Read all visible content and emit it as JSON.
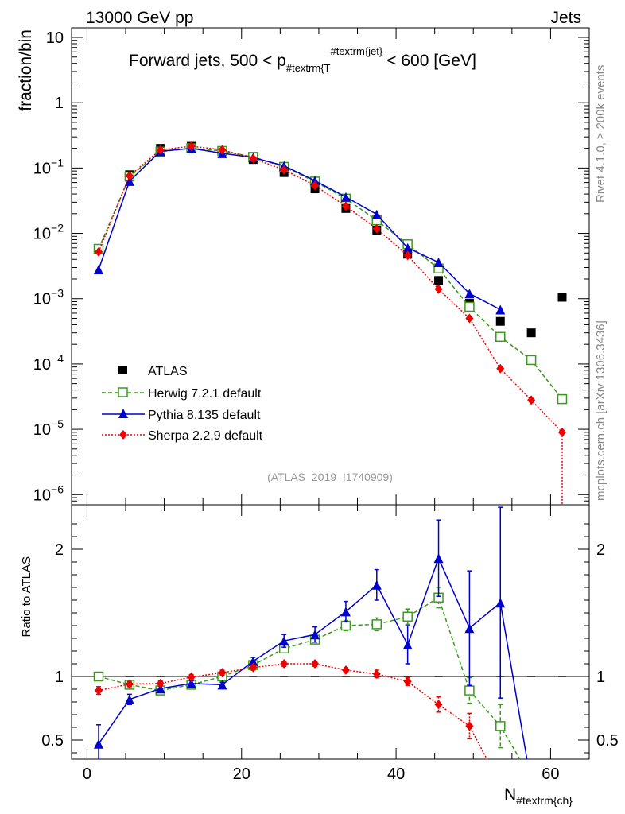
{
  "header": {
    "left": "13000 GeV pp",
    "right": "Jets",
    "side_top": "Rivet 4.1.0, ≥ 200k events",
    "side_bottom": "mcplots.cern.ch [arXiv:1306.3436]"
  },
  "chart_data": {
    "type": "scatter",
    "title_parts": {
      "prefix": "Forward jets, 500 < p",
      "sub": "#textrm{T",
      "sup": "#textrm{jet}",
      "suffix": "< 600 [GeV]"
    },
    "watermark": "(ATLAS_2019_I1740909)",
    "ylabel": "fraction/bin",
    "ratio_ylabel": "Ratio to ATLAS",
    "xlabel_main": "N",
    "xlabel_sub": "#textrm{ch}",
    "xlim": [
      -2,
      65
    ],
    "ylim_log": [
      7e-07,
      14
    ],
    "ratio_ylim": [
      0.35,
      2.35
    ],
    "x_ticks": [
      0,
      20,
      40,
      60
    ],
    "y_ticks": [
      {
        "value": 10,
        "mant": "10",
        "exp": ""
      },
      {
        "value": 1,
        "mant": "1",
        "exp": ""
      },
      {
        "value": 0.1,
        "mant": "10",
        "exp": "−1"
      },
      {
        "value": 0.01,
        "mant": "10",
        "exp": "−2"
      },
      {
        "value": 0.001,
        "mant": "10",
        "exp": "−3"
      },
      {
        "value": 0.0001,
        "mant": "10",
        "exp": "−4"
      },
      {
        "value": 1e-05,
        "mant": "10",
        "exp": "−5"
      },
      {
        "value": 1e-06,
        "mant": "10",
        "exp": "−6"
      }
    ],
    "ratio_ticks": [
      {
        "value": 0.5,
        "label": "0.5"
      },
      {
        "value": 1,
        "label": "1"
      },
      {
        "value": 2,
        "label": "2"
      }
    ],
    "x": [
      1.5,
      5.5,
      9.5,
      13.5,
      17.5,
      21.5,
      25.5,
      29.5,
      33.5,
      37.5,
      41.5,
      45.5,
      49.5,
      53.5,
      57.5,
      61.5
    ],
    "series": [
      {
        "name": "ATLAS",
        "marker": "square",
        "color": "#000000",
        "dash": "",
        "values": [
          0.0058,
          0.079,
          0.2,
          0.215,
          0.18,
          0.135,
          0.085,
          0.048,
          0.024,
          0.0112,
          0.0048,
          0.0019,
          0.00085,
          0.00045,
          0.0003,
          0.00105
        ],
        "ratio": [
          1,
          1,
          1,
          1,
          1,
          1,
          1,
          1,
          1,
          1,
          1,
          1,
          1,
          1,
          1,
          1
        ]
      },
      {
        "name": "Herwig 7.2.1 default",
        "marker": "open-square",
        "color": "#3a9a1a",
        "dash": "5,3",
        "values": [
          0.0058,
          0.074,
          0.178,
          0.2,
          0.182,
          0.148,
          0.104,
          0.062,
          0.034,
          0.0158,
          0.0068,
          0.0029,
          0.00075,
          0.00026,
          0.000115,
          2.9e-05
        ],
        "ratio": [
          1.0,
          0.935,
          0.89,
          0.935,
          1.0,
          1.09,
          1.22,
          1.29,
          1.4,
          1.41,
          1.47,
          1.62,
          0.89,
          0.61,
          null,
          null
        ],
        "ratio_err": [
          0.03,
          0.02,
          0.02,
          0.02,
          0.02,
          0.02,
          0.03,
          0.03,
          0.04,
          0.05,
          0.06,
          0.08,
          0.1,
          0.17,
          null,
          null
        ]
      },
      {
        "name": "Pythia 8.135 default",
        "marker": "triangle",
        "color": "#0000cc",
        "dash": "",
        "values": [
          0.0028,
          0.063,
          0.18,
          0.2,
          0.168,
          0.145,
          0.108,
          0.064,
          0.036,
          0.0195,
          0.006,
          0.0036,
          0.0012,
          0.00068
        ],
        "ratio": [
          0.47,
          0.82,
          0.905,
          0.945,
          0.935,
          1.12,
          1.28,
          1.33,
          1.51,
          1.72,
          1.25,
          1.93,
          1.38,
          1.58
        ],
        "ratio_err": [
          0.15,
          0.04,
          0.02,
          0.02,
          0.02,
          0.03,
          0.05,
          0.06,
          0.08,
          0.12,
          0.15,
          0.3,
          0.45,
          0.75
        ]
      },
      {
        "name": "Sherpa 2.2.9 default",
        "marker": "diamond",
        "color": "#ee0000",
        "dash": "2,2",
        "values": [
          0.0052,
          0.076,
          0.19,
          0.215,
          0.19,
          0.14,
          0.094,
          0.054,
          0.026,
          0.0118,
          0.0046,
          0.0014,
          0.0005,
          8.5e-05,
          2.8e-05,
          9e-06
        ],
        "ratio": [
          0.89,
          0.94,
          0.945,
          0.995,
          1.03,
          1.07,
          1.1,
          1.1,
          1.05,
          1.02,
          0.96,
          0.78,
          0.61,
          null,
          null,
          null
        ],
        "ratio_err": [
          0.03,
          0.02,
          0.02,
          0.02,
          0.02,
          0.02,
          0.02,
          0.02,
          0.02,
          0.03,
          0.03,
          0.06,
          0.1,
          null,
          null,
          null
        ]
      }
    ]
  }
}
